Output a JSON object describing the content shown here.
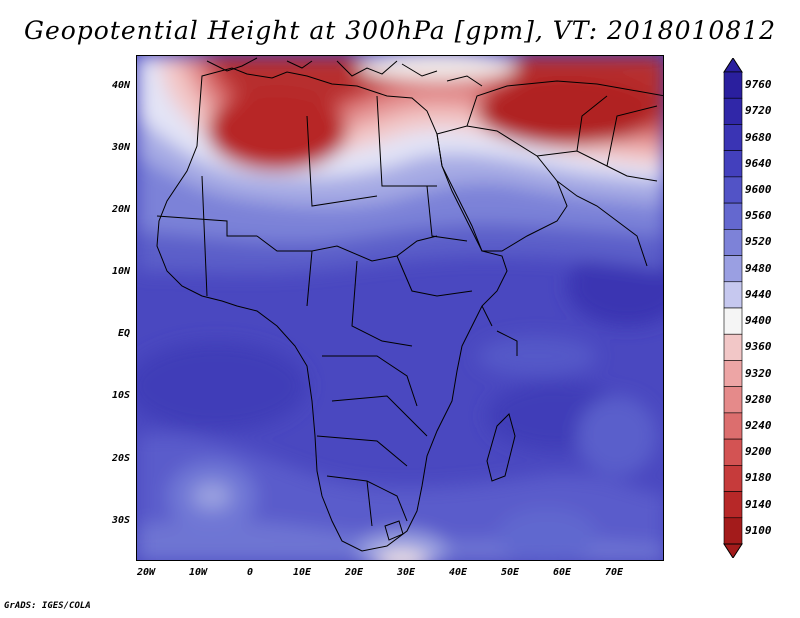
{
  "title": "Geopotential Height at 300hPa [gpm], VT: 2018010812",
  "footer": "GrADS: IGES/COLA",
  "map": {
    "lat_labels": [
      "40N",
      "30N",
      "20N",
      "10N",
      "EQ",
      "10S",
      "20S",
      "30S"
    ],
    "lon_labels": [
      "20W",
      "10W",
      "0",
      "10E",
      "20E",
      "30E",
      "40E",
      "50E",
      "60E",
      "70E"
    ]
  },
  "colorbar": {
    "levels": [
      "9760",
      "9720",
      "9680",
      "9640",
      "9600",
      "9560",
      "9520",
      "9480",
      "9440",
      "9400",
      "9360",
      "9320",
      "9280",
      "9240",
      "9200",
      "9180",
      "9140",
      "9100"
    ],
    "colors": [
      "#2a1f9e",
      "#3027a8",
      "#3a34b4",
      "#4340bd",
      "#5253c6",
      "#6468cf",
      "#7d82d8",
      "#9a9fe2",
      "#c6c8ef",
      "#f5f5f5",
      "#f2c7c7",
      "#eda5a5",
      "#e58a8a",
      "#dc6e6e",
      "#d35353",
      "#c63b3b",
      "#b72828",
      "#a31b1b"
    ]
  }
}
